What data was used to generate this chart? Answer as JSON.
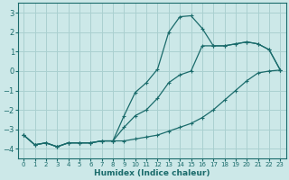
{
  "xlabel": "Humidex (Indice chaleur)",
  "ylabel": "",
  "bg_color": "#cce8e8",
  "grid_color": "#aad0d0",
  "line_color": "#1a6b6b",
  "xlim": [
    -0.5,
    23.5
  ],
  "ylim": [
    -4.5,
    3.5
  ],
  "xticks": [
    0,
    1,
    2,
    3,
    4,
    5,
    6,
    7,
    8,
    9,
    10,
    11,
    12,
    13,
    14,
    15,
    16,
    17,
    18,
    19,
    20,
    21,
    22,
    23
  ],
  "yticks": [
    -4,
    -3,
    -2,
    -1,
    0,
    1,
    2,
    3
  ],
  "line1_x": [
    0,
    1,
    2,
    3,
    4,
    5,
    6,
    7,
    8,
    9,
    10,
    11,
    12,
    13,
    14,
    15,
    16,
    17,
    18,
    19,
    20,
    21,
    22,
    23
  ],
  "line1_y": [
    -3.3,
    -3.8,
    -3.7,
    -3.9,
    -3.7,
    -3.7,
    -3.7,
    -3.6,
    -3.6,
    -3.6,
    -3.5,
    -3.4,
    -3.3,
    -3.1,
    -2.9,
    -2.7,
    -2.4,
    -2.0,
    -1.5,
    -1.0,
    -0.5,
    -0.1,
    0.0,
    0.05
  ],
  "line2_x": [
    0,
    1,
    2,
    3,
    4,
    5,
    6,
    7,
    8,
    9,
    10,
    11,
    12,
    13,
    14,
    15,
    16,
    17,
    18,
    19,
    20,
    21,
    22,
    23
  ],
  "line2_y": [
    -3.3,
    -3.8,
    -3.7,
    -3.9,
    -3.7,
    -3.7,
    -3.7,
    -3.6,
    -3.6,
    -2.3,
    -1.1,
    -0.6,
    0.1,
    2.0,
    2.8,
    2.85,
    2.2,
    1.3,
    1.3,
    1.4,
    1.5,
    1.4,
    1.1,
    0.05
  ],
  "line3_x": [
    0,
    1,
    2,
    3,
    4,
    5,
    6,
    7,
    8,
    9,
    10,
    11,
    12,
    13,
    14,
    15,
    16,
    17,
    18,
    19,
    20,
    21,
    22,
    23
  ],
  "line3_y": [
    -3.3,
    -3.8,
    -3.7,
    -3.9,
    -3.7,
    -3.7,
    -3.7,
    -3.6,
    -3.6,
    -2.9,
    -2.3,
    -2.0,
    -1.4,
    -0.6,
    -0.2,
    0.0,
    1.3,
    1.3,
    1.3,
    1.4,
    1.5,
    1.4,
    1.1,
    0.05
  ]
}
